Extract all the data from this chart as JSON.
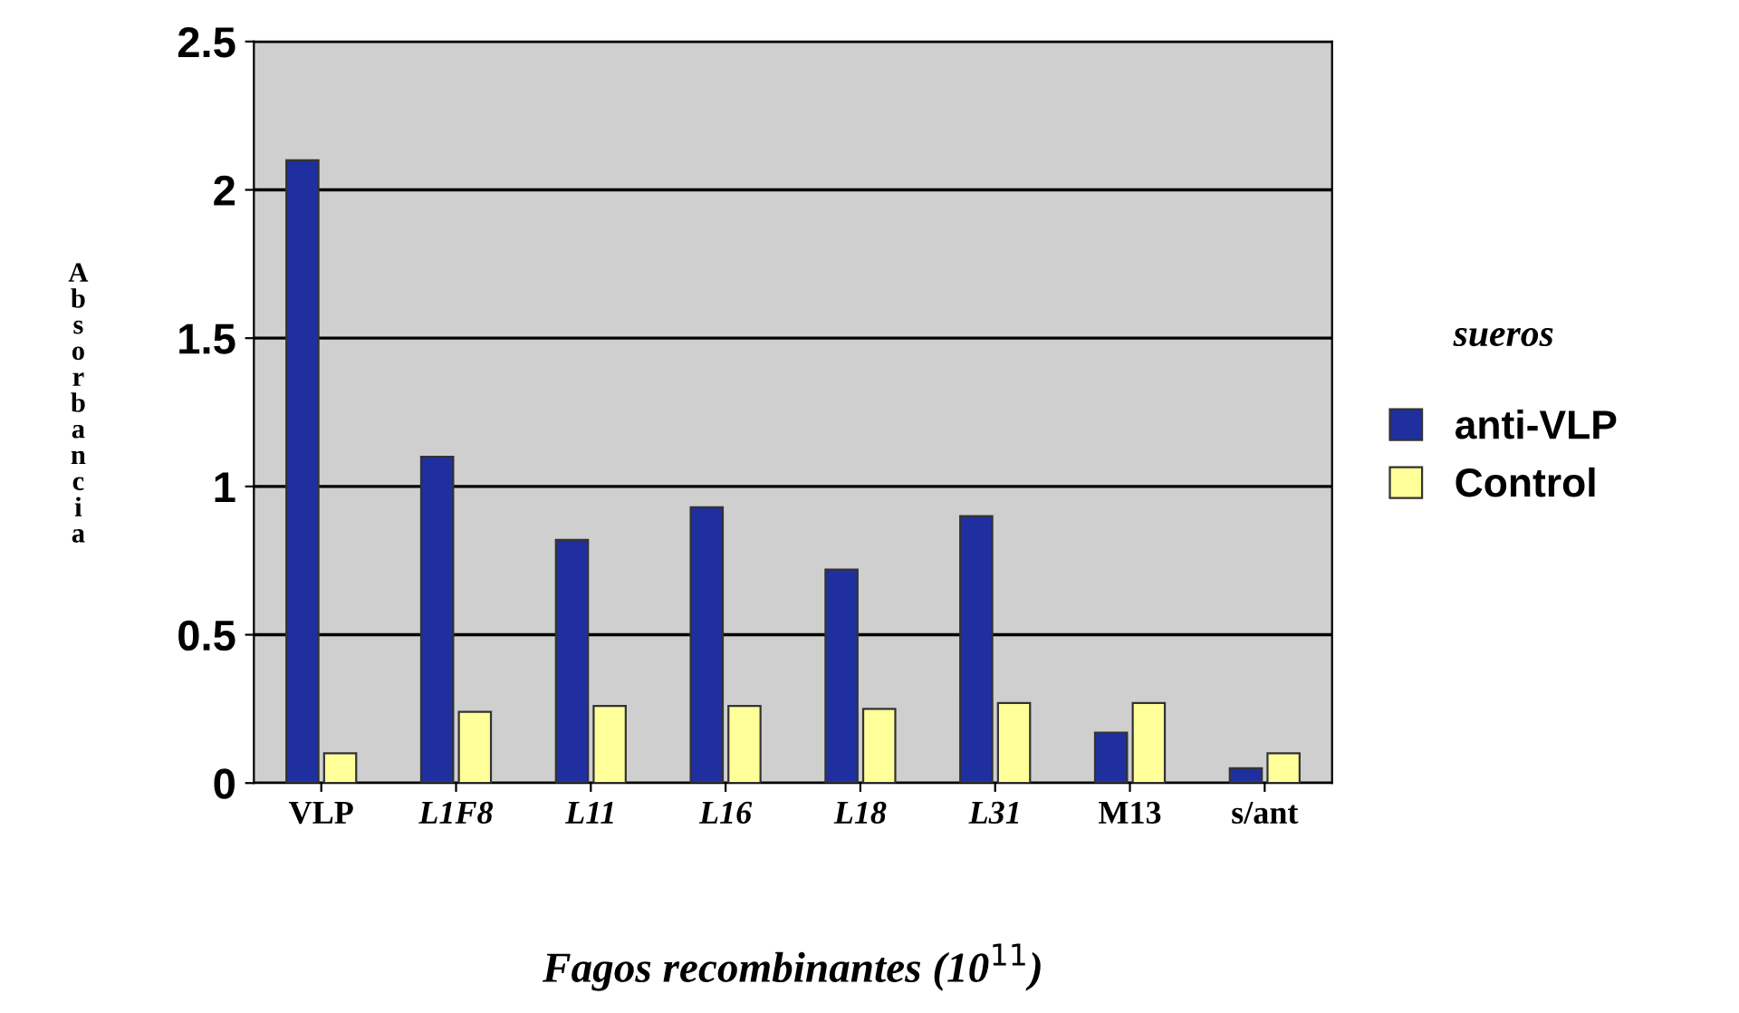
{
  "chart_data": {
    "type": "bar",
    "xlabel": "Fagos recombinantes (10$^{11}$)",
    "ylabel": "Absorbancia",
    "legend_title": "sueros",
    "categories": [
      "VLP",
      "L1F8",
      "L11",
      "L16",
      "L18",
      "L31",
      "M13",
      "s/ant"
    ],
    "series": [
      {
        "name": "anti-VLP",
        "color": "#1f2fa0",
        "values": [
          2.1,
          1.1,
          0.82,
          0.93,
          0.72,
          0.9,
          0.17,
          0.05
        ]
      },
      {
        "name": "Control",
        "color": "#ffff99",
        "values": [
          0.1,
          0.24,
          0.26,
          0.26,
          0.25,
          0.27,
          0.27,
          0.1
        ]
      }
    ],
    "ylim": [
      0,
      2.5
    ],
    "yticks": [
      0,
      0.5,
      1,
      1.5,
      2,
      2.5
    ],
    "grid": "y",
    "legend": "right"
  }
}
